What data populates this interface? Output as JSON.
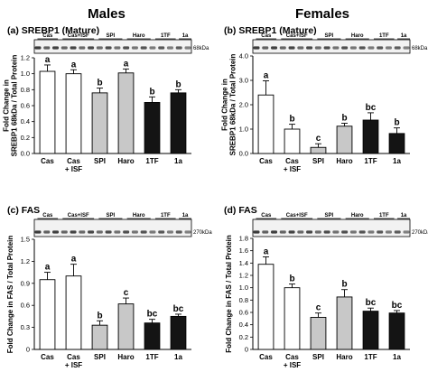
{
  "header": {
    "males": "Males",
    "females": "Females"
  },
  "blot_lanes": [
    "Cas",
    "Cas+ISF",
    "SPI",
    "Haro",
    "1TF",
    "1a"
  ],
  "chart_data": [
    {
      "type": "bar",
      "title": "(a) SREBP1 (Mature)",
      "ylabel_lines": [
        "Fold Change in",
        "SREBP1 68kDa / Total Protein"
      ],
      "ylim": [
        0,
        1.2
      ],
      "yticks": [
        "0.0",
        "0.2",
        "0.4",
        "0.6",
        "0.8",
        "1.0",
        "1.2"
      ],
      "blot_marker": "68kDa",
      "categories": [
        "Cas",
        "Cas + ISF",
        "SPI",
        "Haro",
        "1TF",
        "1a"
      ],
      "values": [
        1.03,
        1.0,
        0.76,
        1.01,
        0.64,
        0.76
      ],
      "errors": [
        0.08,
        0.05,
        0.06,
        0.05,
        0.07,
        0.04
      ],
      "letters": [
        "a",
        "a",
        "b",
        "a",
        "b",
        "b"
      ]
    },
    {
      "type": "bar",
      "title": "(b) SREBP1 (Mature)",
      "ylabel_lines": [
        "Fold Change in",
        "SREBP1 68kDa / Total Protein"
      ],
      "ylim": [
        0,
        4.0
      ],
      "yticks": [
        "0.0",
        "1.0",
        "2.0",
        "3.0",
        "4.0"
      ],
      "blot_marker": "68kDa",
      "categories": [
        "Cas",
        "Cas + ISF",
        "SPI",
        "Haro",
        "1TF",
        "1a"
      ],
      "values": [
        2.4,
        1.0,
        0.25,
        1.12,
        1.37,
        0.82
      ],
      "errors": [
        0.58,
        0.2,
        0.15,
        0.12,
        0.3,
        0.23
      ],
      "letters": [
        "a",
        "b",
        "c",
        "b",
        "bc",
        "b"
      ]
    },
    {
      "type": "bar",
      "title": "(c) FAS",
      "ylabel_lines": [
        "Fold Change in FAS / Total Protein"
      ],
      "ylim": [
        0,
        1.5
      ],
      "yticks": [
        "0",
        "0.3",
        "0.6",
        "0.9",
        "1.2",
        "1.5"
      ],
      "blot_marker": "270kDa",
      "categories": [
        "Cas",
        "Cas + ISF",
        "SPI",
        "Haro",
        "1TF",
        "1a"
      ],
      "values": [
        0.95,
        1.0,
        0.33,
        0.62,
        0.36,
        0.45
      ],
      "errors": [
        0.1,
        0.16,
        0.06,
        0.08,
        0.05,
        0.03
      ],
      "letters": [
        "a",
        "a",
        "b",
        "c",
        "bc",
        "bc"
      ]
    },
    {
      "type": "bar",
      "title": "(d) FAS",
      "ylabel_lines": [
        "Fold Change in FAS / Total Protein"
      ],
      "ylim": [
        0,
        1.8
      ],
      "yticks": [
        "0",
        "0.2",
        "0.4",
        "0.6",
        "0.8",
        "1.0",
        "1.2",
        "1.4",
        "1.6",
        "1.8"
      ],
      "blot_marker": "270kDa",
      "categories": [
        "Cas",
        "Cas + ISF",
        "SPI",
        "Haro",
        "1TF",
        "1a"
      ],
      "values": [
        1.38,
        1.0,
        0.52,
        0.85,
        0.62,
        0.59
      ],
      "errors": [
        0.12,
        0.06,
        0.07,
        0.12,
        0.05,
        0.04
      ],
      "letters": [
        "a",
        "b",
        "c",
        "b",
        "bc",
        "bc"
      ]
    }
  ],
  "bar_colors": [
    "#ffffff",
    "#ffffff",
    "#c8c8c8",
    "#c8c8c8",
    "#141414",
    "#141414"
  ]
}
